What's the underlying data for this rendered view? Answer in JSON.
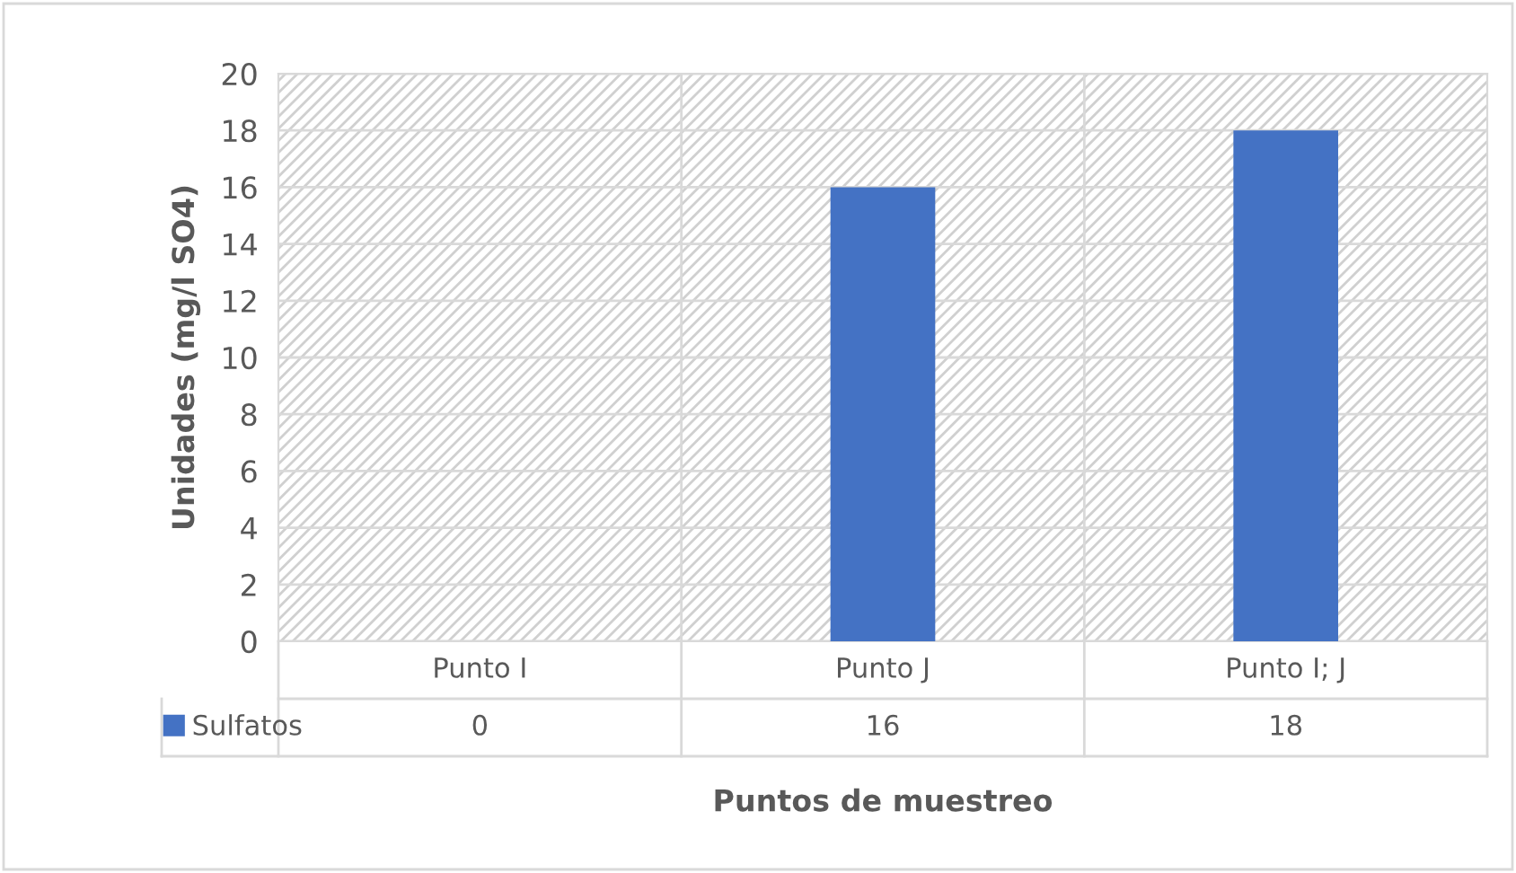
{
  "chart_data": {
    "type": "bar",
    "categories": [
      "Punto I",
      "Punto J",
      "Punto I; J"
    ],
    "series": [
      {
        "name": "Sulfatos",
        "color": "#4472c4",
        "values": [
          0,
          16,
          18
        ]
      }
    ],
    "ylabel": "Unidades (mg/l SO4)",
    "xlabel": "Puntos de muestreo",
    "ylim": [
      0,
      20
    ],
    "yticks": [
      0,
      2,
      4,
      6,
      8,
      10,
      12,
      14,
      16,
      18,
      20
    ],
    "grid": "y",
    "legend": "bottom",
    "data_labels": true
  }
}
